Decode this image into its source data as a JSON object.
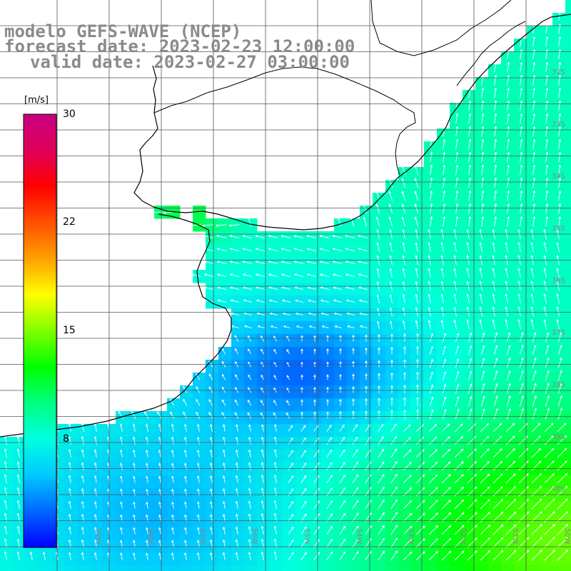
{
  "title": {
    "line1": "modelo GEFS-WAVE (NCEP)",
    "line2": "forecast date: 2023-02-23 12:00:00",
    "line3": "valid date: 2023-02-27 03:00:00"
  },
  "colorbar": {
    "unit": "[m/s]",
    "ticks": [
      {
        "value": 30,
        "label": "30"
      },
      {
        "value": 22,
        "label": "22"
      },
      {
        "value": 15,
        "label": "15"
      },
      {
        "value": 8,
        "label": "8"
      }
    ],
    "min": 0,
    "max": 30,
    "stops": [
      "#0000ff",
      "#0066ff",
      "#00c8ff",
      "#00ffe0",
      "#00ff80",
      "#00ff00",
      "#80ff00",
      "#ffff00",
      "#ffa000",
      "#ff5000",
      "#ff0000",
      "#e0005a",
      "#c80080"
    ]
  },
  "lon_labels": [
    "60W",
    "59W",
    "58W",
    "57W",
    "56W",
    "55W",
    "54W",
    "53W",
    "52W",
    "51W",
    "50W"
  ],
  "lat_labels": [
    "32S",
    "33S",
    "34S",
    "35S",
    "36S",
    "37S",
    "38S",
    "39S",
    "40S"
  ],
  "colors": {
    "grid": "#555555",
    "coast": "#000000",
    "land": "#ffffff",
    "arrow": "#ffffff",
    "label": "#888888"
  }
}
